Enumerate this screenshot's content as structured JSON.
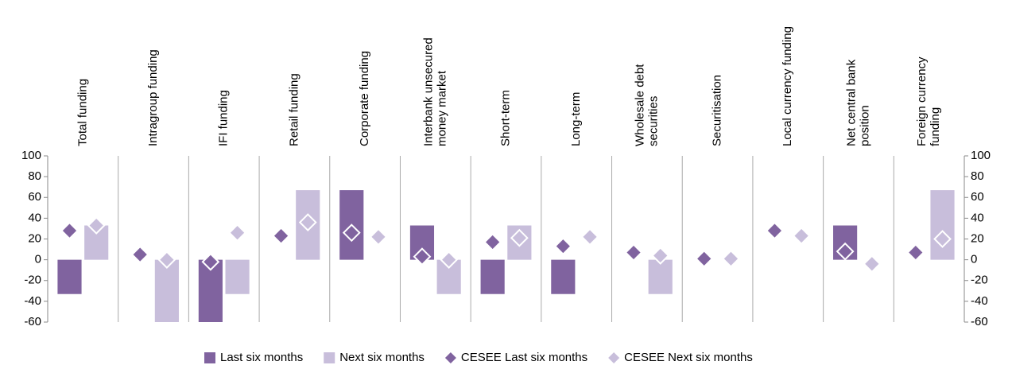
{
  "chart_data": {
    "type": "bar",
    "categories": [
      [
        "Total funding"
      ],
      [
        "Intragroup funding"
      ],
      [
        "IFI funding"
      ],
      [
        "Retail funding"
      ],
      [
        "Corporate funding"
      ],
      [
        "Interbank unsecured",
        "money market"
      ],
      [
        "Short-term"
      ],
      [
        "Long-term"
      ],
      [
        "Wholesale debt",
        "securities"
      ],
      [
        "Securitisation"
      ],
      [
        "Local currency funding"
      ],
      [
        "Net central bank",
        "position"
      ],
      [
        "Foreign currency",
        "funding"
      ]
    ],
    "series": [
      {
        "name": "Last six months",
        "color": "#80639f",
        "kind": "bar",
        "values": [
          -33,
          0,
          -67,
          0,
          67,
          33,
          -33,
          -33,
          0,
          0,
          0,
          33,
          0
        ]
      },
      {
        "name": "Next six months",
        "color": "#c8bedb",
        "kind": "bar",
        "values": [
          33,
          -67,
          -33,
          67,
          0,
          -33,
          33,
          0,
          -33,
          0,
          0,
          0,
          67
        ]
      },
      {
        "name": "CESEE Last six months",
        "color": "#80639f",
        "kind": "diamond",
        "values": [
          28,
          5,
          -2,
          23,
          26,
          3,
          17,
          13,
          7,
          1,
          28,
          8,
          7
        ]
      },
      {
        "name": "CESEE Next six months",
        "color": "#c8bedb",
        "kind": "diamond",
        "values": [
          33,
          0,
          26,
          36,
          22,
          0,
          21,
          22,
          4,
          1,
          23,
          -4,
          20
        ]
      }
    ],
    "ylim": [
      -60,
      100
    ],
    "yticks": [
      -60,
      -40,
      -20,
      0,
      20,
      40,
      60,
      80,
      100
    ]
  }
}
